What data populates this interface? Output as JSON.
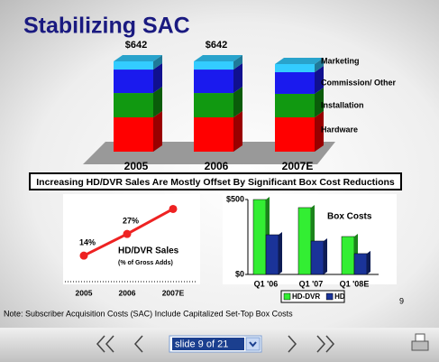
{
  "slide": {
    "title": "Stabilizing SAC",
    "banner": "Increasing HD/DVR Sales Are Mostly Offset By Significant Box Cost Reductions",
    "note": "Note: Subscriber Acquisition Costs (SAC) Include Capitalized Set-Top Box Costs",
    "page_number": "9"
  },
  "viewer": {
    "slide_selector": "slide 9 of 21"
  },
  "chart_data": [
    {
      "type": "stacked-bar",
      "categories": [
        "2005",
        "2006",
        "2007E"
      ],
      "series": [
        {
          "name": "Hardware",
          "color": "#ff0000",
          "values": [
            244,
            244,
            244
          ]
        },
        {
          "name": "Installation",
          "color": "#119911",
          "values": [
            173,
            173,
            167
          ]
        },
        {
          "name": "Commission/ Other",
          "color": "#1a1aee",
          "values": [
            167,
            167,
            154
          ]
        },
        {
          "name": "Marketing",
          "color": "#33ccff",
          "values": [
            58,
            58,
            58
          ]
        }
      ],
      "annotations": [
        {
          "text": "$642",
          "category": "2005"
        },
        {
          "text": "$642",
          "category": "2006"
        }
      ]
    },
    {
      "type": "line",
      "categories": [
        "2005",
        "2006",
        "2007E"
      ],
      "values": [
        14,
        27,
        42
      ],
      "value_labels": [
        "14%",
        "27%",
        null
      ],
      "color": "#ee2222",
      "annotations": [
        "HD/DVR Sales",
        "(% of Gross Adds)"
      ]
    },
    {
      "type": "bar",
      "title": "Box Costs",
      "categories": [
        "Q1 '06",
        "Q1 '07",
        "Q1 '08E"
      ],
      "series": [
        {
          "name": "HD-DVR",
          "color": "#33ee33",
          "values": [
            500,
            446,
            253
          ]
        },
        {
          "name": "HD",
          "color": "#1a3399",
          "values": [
            265,
            223,
            139
          ]
        }
      ],
      "ylim": [
        0,
        500
      ],
      "yticks": [
        {
          "value": 0,
          "label": "$0"
        },
        {
          "value": 500,
          "label": "$500"
        }
      ]
    }
  ]
}
